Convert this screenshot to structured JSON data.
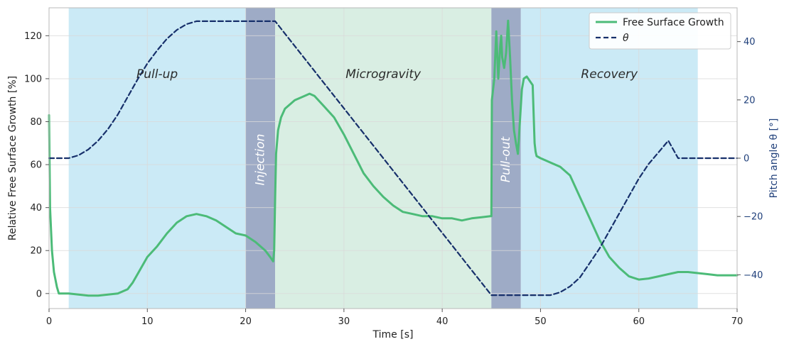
{
  "chart_data": {
    "type": "line",
    "xlabel": "Time [s]",
    "ylabel_left": "Relative Free Surface Growth [%]",
    "ylabel_right": "Pitch angle θ [°]",
    "xlim": [
      0,
      70
    ],
    "ylim_left": [
      -7,
      133
    ],
    "ylim_right": [
      -51.6,
      51.6
    ],
    "x_ticks": [
      0,
      10,
      20,
      30,
      40,
      50,
      60,
      70
    ],
    "y_left_ticks": [
      0,
      20,
      40,
      60,
      80,
      100,
      120
    ],
    "y_right_ticks": [
      -40,
      -20,
      0,
      20,
      40
    ],
    "grid": true,
    "legend_placement": "top-right",
    "regions": [
      {
        "label": "Pull-up",
        "x_start": 2,
        "x_end": 20,
        "color": "#cbeaf6",
        "vertical": false
      },
      {
        "label": "Injection",
        "x_start": 20,
        "x_end": 23,
        "color": "#9eabc6",
        "vertical": true
      },
      {
        "label": "Microgravity",
        "x_start": 23,
        "x_end": 45,
        "color": "#d9eee3",
        "vertical": false
      },
      {
        "label": "Pull-out",
        "x_start": 45,
        "x_end": 48,
        "color": "#9eabc6",
        "vertical": true
      },
      {
        "label": "Recovery",
        "x_start": 48,
        "x_end": 66,
        "color": "#cbeaf6",
        "vertical": false
      }
    ],
    "series": [
      {
        "name": "Free Surface Growth",
        "axis": "left",
        "color": "#4cbb78",
        "dash": "solid",
        "x": [
          0,
          0.1,
          0.3,
          0.5,
          0.8,
          1.0,
          2,
          3,
          4,
          5,
          6,
          7,
          8,
          8.5,
          9,
          10,
          11,
          12,
          13,
          14,
          15,
          16,
          16.5,
          17,
          18,
          19,
          20,
          21,
          22,
          22.5,
          22.8,
          22.9,
          23.0,
          23.1,
          23.3,
          23.6,
          24,
          25,
          26,
          26.5,
          27,
          28,
          29,
          30,
          31,
          32,
          33,
          34,
          35,
          36,
          37,
          38,
          39,
          40,
          41,
          42,
          43,
          44,
          44.9,
          45.0,
          45.05,
          45.3,
          45.5,
          45.7,
          45.9,
          46.0,
          46.1,
          46.3,
          46.5,
          46.7,
          46.9,
          47.1,
          47.3,
          47.5,
          47.7,
          47.8,
          47.9,
          48.1,
          48.3,
          48.6,
          48.9,
          49.2,
          49.4,
          49.5,
          49.6,
          50,
          50.5,
          51,
          52,
          53,
          54,
          55,
          56,
          57,
          58,
          59,
          60,
          61,
          62,
          63,
          64,
          65,
          66,
          67,
          68,
          70
        ],
        "values": [
          83,
          40,
          20,
          10,
          3,
          0,
          0,
          -0.5,
          -1,
          -1,
          -0.5,
          0,
          2,
          5,
          9,
          17,
          22,
          28,
          33,
          36,
          37,
          36,
          35,
          34,
          31,
          28,
          27,
          24,
          20,
          17,
          15,
          20,
          45,
          65,
          76,
          82,
          86,
          90,
          92,
          93,
          92,
          87,
          82,
          74,
          65,
          56,
          50,
          45,
          41,
          38,
          37,
          36,
          36,
          35,
          35,
          34,
          35,
          35.5,
          36,
          36,
          90,
          100,
          122,
          100,
          115,
          120,
          110,
          105,
          112,
          127,
          110,
          90,
          76,
          70,
          65,
          72,
          80,
          95,
          100,
          101,
          99,
          97,
          70,
          66,
          64,
          63,
          62,
          61,
          59,
          55,
          45,
          35,
          25,
          17,
          12,
          8,
          6.5,
          7,
          8,
          9,
          10,
          10,
          9.5,
          9,
          8.5,
          8.5
        ]
      },
      {
        "name": "θ",
        "axis": "right",
        "color": "#17306b",
        "dash": "dashed",
        "x": [
          0,
          1,
          2,
          3,
          4,
          5,
          6,
          7,
          8,
          9,
          10,
          11,
          12,
          13,
          14,
          15,
          16,
          17,
          20,
          23,
          45,
          48,
          51,
          52,
          53,
          54,
          55,
          56,
          57,
          58,
          59,
          60,
          61,
          62,
          63,
          64,
          65,
          66,
          70
        ],
        "values": [
          0,
          0,
          0,
          1,
          3,
          6,
          10,
          15,
          21,
          27,
          32.5,
          37,
          41,
          44,
          46,
          47,
          47,
          47,
          47,
          47,
          -47,
          -47,
          -47,
          -46,
          -44,
          -41,
          -36,
          -31,
          -25,
          -19,
          -13,
          -7,
          -2,
          2,
          6,
          0,
          0,
          0,
          0
        ]
      }
    ]
  }
}
